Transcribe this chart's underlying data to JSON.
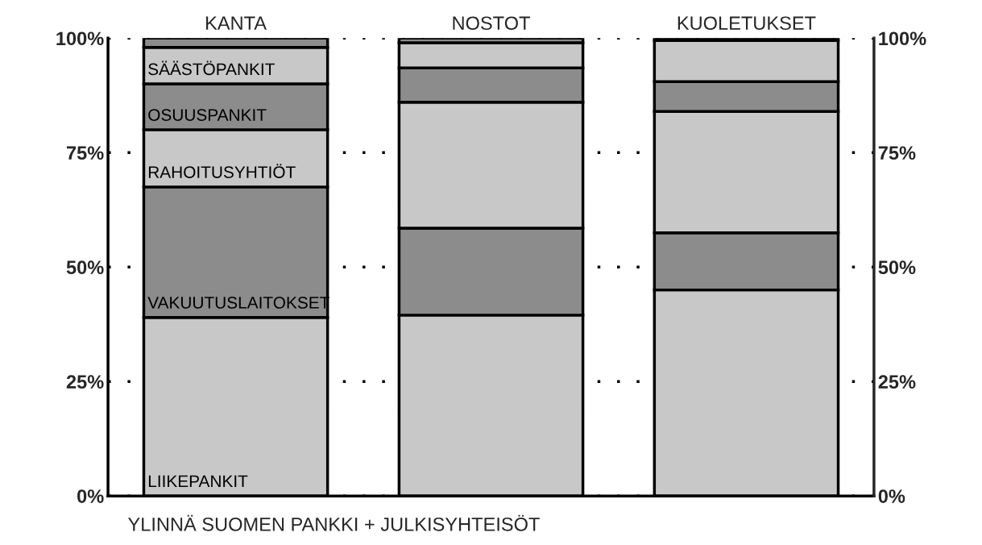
{
  "chart_data": {
    "type": "bar",
    "stacked": true,
    "categories": [
      "KANTA",
      "NOSTOT",
      "KUOLETUKSET"
    ],
    "series": [
      {
        "name": "LIIKEPANKIT",
        "color": "#c8c8c8",
        "values": [
          39,
          39.5,
          45
        ]
      },
      {
        "name": "VAKUUTUSLAITOKSET",
        "color": "#8c8c8c",
        "values": [
          28.5,
          19,
          12.5
        ]
      },
      {
        "name": "RAHOITUSYHTIÖT",
        "color": "#c8c8c8",
        "values": [
          12.5,
          27.5,
          26.5
        ]
      },
      {
        "name": "OSUUSPANKIT",
        "color": "#8c8c8c",
        "values": [
          10,
          7.5,
          6.5
        ]
      },
      {
        "name": "SÄÄSTÖPANKIT",
        "color": "#c8c8c8",
        "values": [
          8,
          5.5,
          9
        ]
      },
      {
        "color": "#8c8c8c",
        "values": [
          2,
          1,
          0.5
        ]
      }
    ],
    "ylim": [
      0,
      100
    ],
    "yticks": [
      {
        "value": 0,
        "label": "0%"
      },
      {
        "value": 25,
        "label": "25%"
      },
      {
        "value": 50,
        "label": "50%"
      },
      {
        "value": 75,
        "label": "75%"
      },
      {
        "value": 100,
        "label": "100%"
      }
    ],
    "y2lim": [
      0,
      100
    ],
    "y2ticks": [
      {
        "value": 0,
        "label": "0%"
      },
      {
        "value": 25,
        "label": "25%"
      },
      {
        "value": 50,
        "label": "50%"
      },
      {
        "value": 75,
        "label": "75%"
      },
      {
        "value": 100,
        "label": "100%"
      }
    ],
    "grid": "y",
    "line_style": "dotted",
    "legend": false,
    "annotations": [
      "YLINNÄ SUOMEN PANKKI + JULKISYHTEISÖT"
    ]
  }
}
